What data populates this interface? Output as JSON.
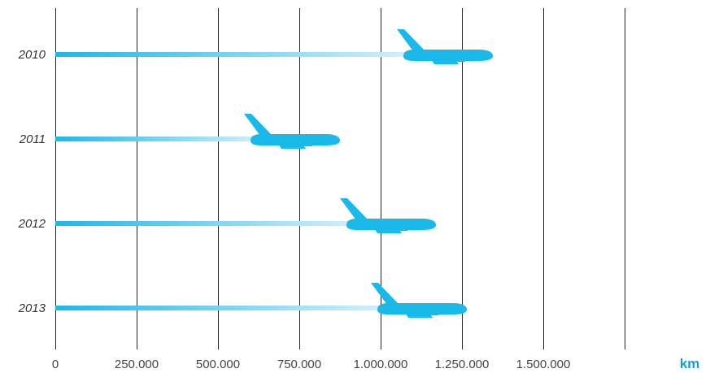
{
  "chart_data": {
    "type": "bar",
    "orientation": "horizontal",
    "categories": [
      "2010",
      "2011",
      "2012",
      "2013"
    ],
    "values": [
      1330000,
      860000,
      1155000,
      1250000
    ],
    "xlim": [
      0,
      1750000
    ],
    "x_ticks": [
      0,
      250000,
      500000,
      750000,
      1000000,
      1250000,
      1500000
    ],
    "x_tick_labels": [
      "0",
      "250.000",
      "500.000",
      "750.000",
      "1.000.000",
      "1.250.000",
      "1.500.000"
    ],
    "x_unit": "km",
    "grid": true,
    "mark": "airplane",
    "colors": {
      "bar": "#1bb8ea",
      "bar_fade": "#d9f2fc",
      "grid": "#222222",
      "unit": "#1a9ad6",
      "text": "#444444"
    }
  }
}
